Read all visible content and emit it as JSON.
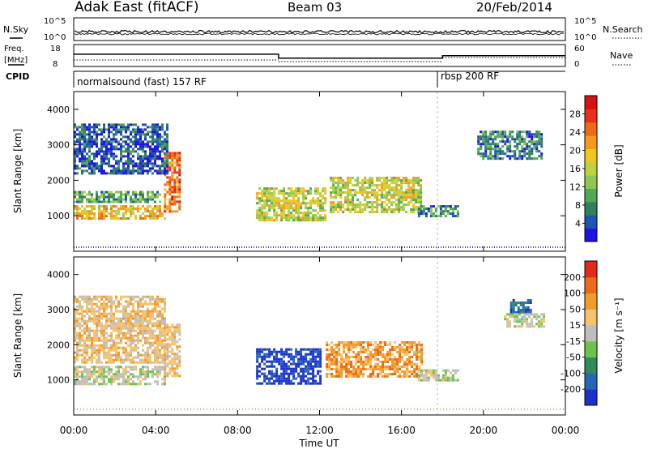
{
  "header": {
    "station": "Adak East (fitACF)",
    "beam": "Beam 03",
    "date": "20/Feb/2014"
  },
  "top_panels": {
    "nsky_label": "N.Sky",
    "nsearch_label": "N.Search",
    "nsky_ticks": [
      "10^5",
      "10^0"
    ],
    "nsearch_ticks": [
      "10^5",
      "10^0"
    ],
    "freq_label_1": "Freq.",
    "freq_label_2": "[MHz]",
    "freq_ticks": [
      "18",
      "8"
    ],
    "nave_label": "Nave",
    "nave_ticks": [
      "60",
      "0"
    ],
    "cpid_label": "CPID",
    "cpid_segments": [
      {
        "label": "normalsound (fast) 157 RF",
        "start_hour": 0
      },
      {
        "label": "rbsp 200 RF",
        "start_hour": 18
      }
    ],
    "freq_mhz": [
      {
        "start_hour": 0,
        "end_hour": 10,
        "value": 13.6
      },
      {
        "start_hour": 10,
        "end_hour": 18,
        "value": 11.8
      },
      {
        "start_hour": 18,
        "end_hour": 24,
        "value": 12.9
      }
    ]
  },
  "chart_data": [
    {
      "type": "heatmap",
      "title": "Power",
      "ylabel": "Slant Range [km]",
      "xlabel": "Time UT",
      "xlim_hours": [
        0,
        24
      ],
      "x_tick_labels": [
        "00:00",
        "04:00",
        "08:00",
        "12:00",
        "16:00",
        "20:00",
        "00:00"
      ],
      "ylim": [
        0,
        4500
      ],
      "y_tick_labels": [
        "1000",
        "2000",
        "3000",
        "4000"
      ],
      "colorbar": {
        "label": "Power [dB]",
        "ticks": [
          "28",
          "24",
          "20",
          "16",
          "12",
          "8",
          "4"
        ],
        "colors": [
          "#1c14e6",
          "#1e54b4",
          "#2d8259",
          "#53a855",
          "#8dc651",
          "#bcd23f",
          "#f2c51c",
          "#f59a1c",
          "#ef6a17",
          "#e8311a",
          "#d6110f"
        ]
      },
      "echo_regions": [
        {
          "t0": 0.0,
          "t1": 4.4,
          "r0": 900,
          "r1": 1300,
          "level": 0.55
        },
        {
          "t0": 4.4,
          "t1": 5.2,
          "r0": 1100,
          "r1": 2800,
          "level": 0.8
        },
        {
          "t0": 0.0,
          "t1": 4.2,
          "r0": 1400,
          "r1": 1700,
          "level": 0.25
        },
        {
          "t0": 0.0,
          "t1": 4.6,
          "r0": 2200,
          "r1": 3600,
          "level": 0.12
        },
        {
          "t0": 8.9,
          "t1": 12.3,
          "r0": 900,
          "r1": 1800,
          "level": 0.45
        },
        {
          "t0": 12.5,
          "t1": 17.0,
          "r0": 1100,
          "r1": 2100,
          "level": 0.5
        },
        {
          "t0": 16.8,
          "t1": 18.8,
          "r0": 1000,
          "r1": 1300,
          "level": 0.2
        },
        {
          "t0": 19.7,
          "t1": 22.8,
          "r0": 2600,
          "r1": 3400,
          "level": 0.15
        }
      ]
    },
    {
      "type": "heatmap",
      "title": "Velocity",
      "ylabel": "Slant Range [km]",
      "xlabel": "Time UT",
      "xlim_hours": [
        0,
        24
      ],
      "x_tick_labels": [
        "00:00",
        "04:00",
        "08:00",
        "12:00",
        "16:00",
        "20:00",
        "00:00"
      ],
      "ylim": [
        0,
        4500
      ],
      "y_tick_labels": [
        "1000",
        "2000",
        "3000",
        "4000"
      ],
      "colorbar": {
        "label": "Velocity [m s⁻¹]",
        "ticks": [
          "200",
          "100",
          "50",
          "15",
          "-15",
          "-50",
          "-100",
          "-200"
        ],
        "colors": [
          "#1c32c8",
          "#2566b8",
          "#2e8c5a",
          "#6cc24a",
          "#bebebe",
          "#f5c26a",
          "#f29a2a",
          "#ec6a1a",
          "#e02a1a"
        ]
      },
      "echo_regions": [
        {
          "t0": 0.0,
          "t1": 4.4,
          "r0": 900,
          "r1": 1400,
          "vclass": 4
        },
        {
          "t0": 4.4,
          "t1": 5.2,
          "r0": 1100,
          "r1": 2600,
          "vclass": 5
        },
        {
          "t0": 0.0,
          "t1": 4.4,
          "r0": 1500,
          "r1": 3400,
          "vclass": 5
        },
        {
          "t0": 8.9,
          "t1": 12.0,
          "r0": 900,
          "r1": 1900,
          "vclass": 0
        },
        {
          "t0": 12.3,
          "t1": 17.0,
          "r0": 1100,
          "r1": 2100,
          "vclass": 6
        },
        {
          "t0": 16.8,
          "t1": 18.8,
          "r0": 1000,
          "r1": 1300,
          "vclass": 4
        },
        {
          "t0": 21.3,
          "t1": 22.3,
          "r0": 2900,
          "r1": 3300,
          "vclass": 1
        },
        {
          "t0": 21.0,
          "t1": 23.0,
          "r0": 2500,
          "r1": 2900,
          "vclass": 4
        }
      ]
    }
  ]
}
